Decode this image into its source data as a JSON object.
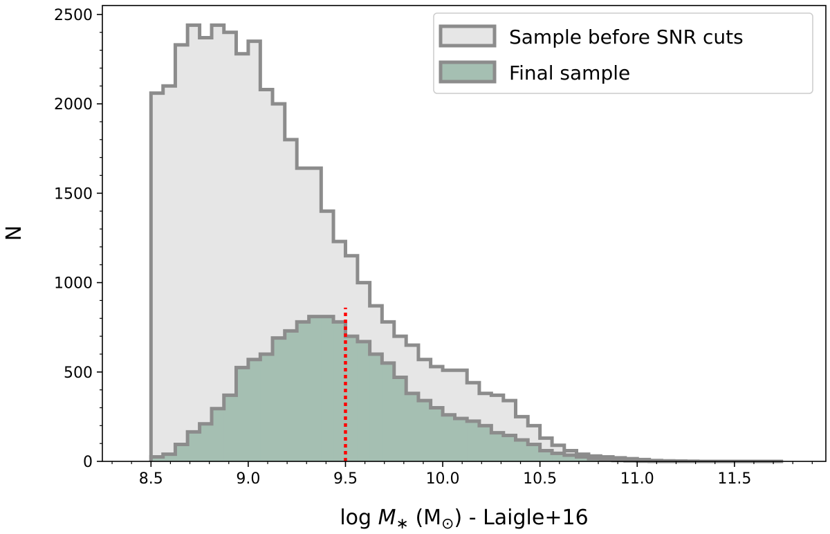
{
  "chart_data": {
    "type": "histogram",
    "xlabel_prefix": "log ",
    "xlabel_symbol": "M",
    "xlabel_subscript": "∗",
    "xlabel_suffix": " (M",
    "xlabel_sun": "⊙",
    "xlabel_tail": ") - Laigle+16",
    "ylabel": "N",
    "xlim": [
      8.25,
      11.97
    ],
    "ylim": [
      0,
      2550
    ],
    "xticks": [
      8.5,
      9.0,
      9.5,
      10.0,
      10.5,
      11.0,
      11.5
    ],
    "xtick_labels": [
      "8.5",
      "9.0",
      "9.5",
      "10.0",
      "10.5",
      "11.0",
      "11.5"
    ],
    "yticks": [
      0,
      500,
      1000,
      1500,
      2000,
      2500
    ],
    "ytick_labels": [
      "0",
      "500",
      "1000",
      "1500",
      "2000",
      "2500"
    ],
    "bin_edges": [
      8.5,
      8.562,
      8.625,
      8.688,
      8.75,
      8.812,
      8.875,
      8.938,
      9.0,
      9.062,
      9.125,
      9.188,
      9.25,
      9.312,
      9.375,
      9.438,
      9.5,
      9.562,
      9.625,
      9.688,
      9.75,
      9.812,
      9.875,
      9.938,
      10.0,
      10.062,
      10.125,
      10.188,
      10.25,
      10.312,
      10.375,
      10.438,
      10.5,
      10.562,
      10.625,
      10.688,
      10.75,
      10.812,
      10.875,
      10.938,
      11.0,
      11.062,
      11.125,
      11.188,
      11.25,
      11.312,
      11.375,
      11.438,
      11.5,
      11.562,
      11.625,
      11.688,
      11.75
    ],
    "series": [
      {
        "name": "Sample before SNR cuts",
        "fill": "#e6e6e6",
        "stroke": "#8c8c8c",
        "values": [
          2060,
          2100,
          2330,
          2440,
          2370,
          2440,
          2400,
          2280,
          2350,
          2080,
          2000,
          1800,
          1640,
          1640,
          1400,
          1230,
          1150,
          1000,
          870,
          780,
          700,
          650,
          570,
          530,
          510,
          510,
          440,
          380,
          370,
          340,
          250,
          200,
          130,
          90,
          60,
          40,
          30,
          25,
          20,
          15,
          10,
          5,
          3,
          2,
          1,
          0,
          0,
          0,
          0,
          0,
          0,
          0
        ]
      },
      {
        "name": "Final sample",
        "fill": "#a5bfb2",
        "stroke": "#8c8c8c",
        "values": [
          25,
          40,
          95,
          165,
          210,
          295,
          370,
          525,
          570,
          600,
          690,
          730,
          780,
          810,
          810,
          780,
          700,
          670,
          600,
          550,
          470,
          380,
          340,
          300,
          260,
          240,
          225,
          200,
          160,
          145,
          120,
          95,
          60,
          45,
          35,
          25,
          15,
          10,
          5,
          3,
          1,
          0,
          0,
          0,
          0,
          0,
          0,
          0,
          0,
          0,
          0,
          0
        ]
      }
    ],
    "median_line": {
      "x": 9.5,
      "top": 860,
      "color": "#ff0000"
    },
    "legend_position": "top-right",
    "grid": false
  }
}
